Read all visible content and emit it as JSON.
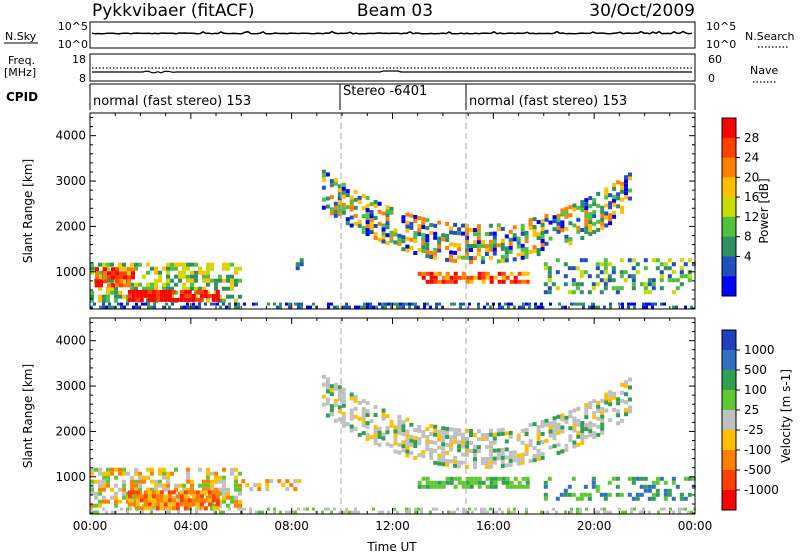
{
  "header": {
    "station": "Pykkvibaer (fitACF)",
    "beam": "Beam 03",
    "date": "30/Oct/2009"
  },
  "strips": {
    "nsky_label": "N.Sky",
    "nsky_ticks": [
      "10^5",
      "10^0"
    ],
    "nsearch_label": "N.Search",
    "nsearch_ticks": [
      "10^5",
      "10^0"
    ],
    "freq_label_1": "Freq.",
    "freq_label_2": "[MHz]",
    "freq_ticks": [
      "18",
      "8"
    ],
    "nave_label": "Nave",
    "nave_ticks": [
      "60",
      "0"
    ],
    "cpid_label": "CPID",
    "modes": [
      {
        "text": "normal (fast stereo) 153",
        "start_h": 0,
        "end_h": 10
      },
      {
        "text": "Stereo -6401",
        "start_h": 10,
        "end_h": 15
      },
      {
        "text": "normal (fast stereo) 153",
        "start_h": 15,
        "end_h": 24
      }
    ]
  },
  "chart_data": [
    {
      "type": "heatmap",
      "ylabel": "Slant Range [km]",
      "xlabel": "Time UT",
      "xlim_hours": [
        0,
        24
      ],
      "ylim_km": [
        180,
        4500
      ],
      "x_tick_labels": [
        "00:00",
        "04:00",
        "08:00",
        "12:00",
        "16:00",
        "20:00",
        "00:00"
      ],
      "y_tick_labels": [
        "1000",
        "2000",
        "3000",
        "4000"
      ],
      "colorbar": {
        "label": "Power [dB]",
        "tick_labels": [
          "28",
          "24",
          "20",
          "16",
          "12",
          "8",
          "4"
        ],
        "colors": [
          "#ff0000",
          "#ff4000",
          "#ff8000",
          "#ffc000",
          "#c8dc00",
          "#50c040",
          "#309060",
          "#2050c0",
          "#0000ff"
        ]
      },
      "mode_boundaries_h": [
        10,
        15
      ]
    },
    {
      "type": "heatmap",
      "ylabel": "Slant Range [km]",
      "xlabel": "Time UT",
      "xlim_hours": [
        0,
        24
      ],
      "ylim_km": [
        180,
        4500
      ],
      "x_tick_labels": [
        "00:00",
        "04:00",
        "08:00",
        "12:00",
        "16:00",
        "20:00",
        "00:00"
      ],
      "y_tick_labels": [
        "1000",
        "2000",
        "3000",
        "4000"
      ],
      "colorbar": {
        "label": "Velocity [m s-1]",
        "tick_labels": [
          "1000",
          "500",
          "100",
          "25",
          "-25",
          "-100",
          "-500",
          "-1000"
        ],
        "colors": [
          "#2040c0",
          "#3070c0",
          "#30a050",
          "#60c830",
          "#c0c0c0",
          "#ffc000",
          "#ff8000",
          "#ff4000",
          "#ff0000"
        ]
      },
      "mode_boundaries_h": [
        10,
        15
      ]
    }
  ],
  "x_axis_title": "Time UT"
}
